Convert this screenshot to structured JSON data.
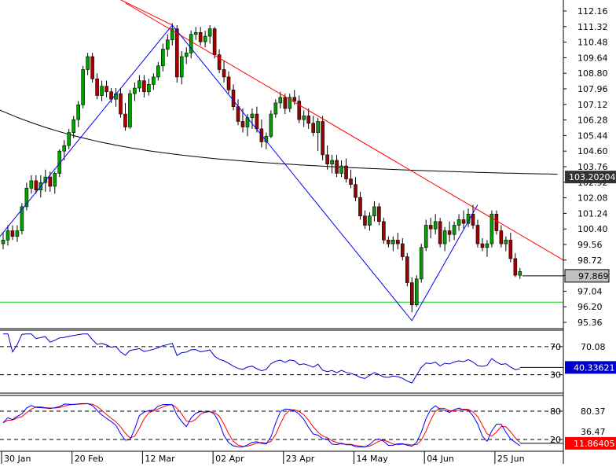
{
  "colors": {
    "background": "#ffffff",
    "up_candle": "#00a000",
    "down_candle": "#a00000",
    "wick": "#000000",
    "trendline_red": "#ff0000",
    "zigzag_blue": "#0000ff",
    "ma_line": "#000000",
    "support_green": "#00cc00",
    "rsi_line": "#0000cc",
    "stoch_k": "#0000ff",
    "stoch_d": "#ff0000",
    "price_label_bg": "#c0c0c0",
    "ma_label_bg": "#333333",
    "rsi_label_bg": "#0000cc",
    "stoch_label_bg": "#ff0000"
  },
  "chart_data": [
    {
      "type": "candlestick",
      "pane": "price",
      "y_ticks": [
        "112.16",
        "111.32",
        "110.48",
        "109.64",
        "108.80",
        "107.96",
        "107.12",
        "106.28",
        "105.44",
        "104.60",
        "103.76",
        "102.92",
        "102.08",
        "101.24",
        "100.40",
        "99.56",
        "98.72",
        "97.88",
        "97.04",
        "96.20",
        "95.36"
      ],
      "ylim": [
        95.0,
        112.5
      ],
      "current_price_label": "97.869",
      "current_price": 97.869,
      "ma_label": "103.20204",
      "ma_value": 103.20204,
      "support_level": 96.45,
      "x_tick_labels": [
        "30 Jan",
        "20 Feb",
        "12 Mar",
        "02 Apr",
        "23 Apr",
        "14 May",
        "04 Jun",
        "25 Jun"
      ],
      "candles": [
        [
          99.6,
          100.2,
          99.3,
          99.8
        ],
        [
          99.8,
          100.6,
          99.5,
          100.3
        ],
        [
          100.3,
          100.6,
          99.8,
          100.0
        ],
        [
          100.0,
          100.6,
          99.7,
          100.3
        ],
        [
          100.3,
          101.8,
          100.1,
          101.6
        ],
        [
          101.6,
          102.9,
          101.4,
          102.6
        ],
        [
          102.6,
          103.3,
          102.3,
          103.0
        ],
        [
          103.0,
          103.3,
          102.3,
          102.5
        ],
        [
          102.5,
          103.3,
          102.1,
          102.9
        ],
        [
          102.9,
          103.6,
          102.4,
          103.2
        ],
        [
          103.2,
          103.5,
          102.4,
          102.7
        ],
        [
          102.7,
          103.5,
          102.3,
          103.4
        ],
        [
          103.4,
          104.7,
          103.2,
          104.6
        ],
        [
          104.6,
          105.2,
          104.1,
          104.9
        ],
        [
          104.9,
          105.8,
          104.7,
          105.6
        ],
        [
          105.6,
          106.5,
          105.3,
          106.3
        ],
        [
          106.3,
          107.3,
          105.9,
          107.1
        ],
        [
          107.1,
          109.2,
          106.9,
          109.0
        ],
        [
          109.0,
          109.9,
          108.7,
          109.7
        ],
        [
          109.7,
          109.9,
          108.3,
          108.5
        ],
        [
          108.5,
          108.8,
          107.4,
          107.6
        ],
        [
          107.6,
          108.4,
          107.3,
          108.1
        ],
        [
          108.1,
          108.4,
          107.5,
          107.8
        ],
        [
          107.8,
          108.0,
          107.2,
          107.4
        ],
        [
          107.4,
          108.0,
          107.0,
          107.7
        ],
        [
          107.7,
          108.0,
          106.4,
          106.6
        ],
        [
          106.6,
          107.2,
          105.7,
          105.9
        ],
        [
          105.9,
          107.9,
          105.8,
          107.7
        ],
        [
          107.7,
          108.3,
          107.3,
          108.0
        ],
        [
          108.0,
          108.7,
          107.8,
          108.4
        ],
        [
          108.4,
          108.7,
          107.5,
          107.8
        ],
        [
          107.8,
          108.5,
          107.6,
          108.2
        ],
        [
          108.2,
          108.8,
          107.9,
          108.6
        ],
        [
          108.6,
          109.4,
          108.4,
          109.2
        ],
        [
          109.2,
          110.4,
          108.9,
          110.1
        ],
        [
          110.1,
          110.9,
          109.7,
          110.6
        ],
        [
          110.6,
          111.5,
          110.3,
          111.2
        ],
        [
          111.2,
          111.4,
          108.3,
          108.6
        ],
        [
          108.6,
          110.0,
          108.2,
          109.7
        ],
        [
          109.7,
          110.2,
          109.3,
          109.9
        ],
        [
          109.9,
          111.1,
          109.6,
          110.9
        ],
        [
          110.9,
          111.3,
          110.6,
          111.0
        ],
        [
          111.0,
          111.3,
          110.3,
          110.5
        ],
        [
          110.5,
          111.1,
          110.2,
          110.8
        ],
        [
          110.8,
          111.4,
          110.4,
          111.2
        ],
        [
          111.2,
          111.3,
          109.6,
          109.8
        ],
        [
          109.8,
          110.1,
          108.8,
          109.0
        ],
        [
          109.0,
          109.5,
          108.3,
          108.6
        ],
        [
          108.6,
          108.9,
          107.7,
          107.9
        ],
        [
          107.9,
          108.2,
          106.8,
          107.0
        ],
        [
          107.0,
          107.4,
          106.0,
          106.2
        ],
        [
          106.2,
          106.9,
          105.6,
          105.9
        ],
        [
          105.9,
          106.6,
          105.4,
          106.4
        ],
        [
          106.4,
          106.9,
          105.8,
          106.6
        ],
        [
          106.6,
          107.0,
          105.6,
          105.8
        ],
        [
          105.8,
          106.3,
          104.8,
          105.1
        ],
        [
          105.1,
          105.6,
          104.7,
          105.4
        ],
        [
          105.4,
          106.8,
          105.3,
          106.6
        ],
        [
          106.6,
          107.4,
          106.4,
          107.2
        ],
        [
          107.2,
          107.8,
          106.9,
          107.5
        ],
        [
          107.5,
          107.7,
          106.6,
          106.9
        ],
        [
          106.9,
          107.7,
          106.7,
          107.5
        ],
        [
          107.5,
          107.9,
          107.1,
          107.3
        ],
        [
          107.3,
          107.6,
          106.1,
          106.3
        ],
        [
          106.3,
          106.8,
          105.9,
          106.5
        ],
        [
          106.5,
          106.9,
          105.8,
          106.1
        ],
        [
          106.1,
          106.5,
          105.4,
          105.6
        ],
        [
          105.6,
          106.4,
          104.6,
          106.2
        ],
        [
          106.2,
          106.5,
          104.1,
          104.4
        ],
        [
          104.4,
          104.9,
          103.6,
          103.9
        ],
        [
          103.9,
          104.4,
          103.4,
          104.1
        ],
        [
          104.1,
          104.4,
          103.2,
          103.4
        ],
        [
          103.4,
          104.1,
          103.2,
          103.8
        ],
        [
          103.8,
          104.2,
          102.9,
          103.1
        ],
        [
          103.1,
          103.6,
          102.6,
          102.8
        ],
        [
          102.8,
          103.2,
          101.9,
          102.1
        ],
        [
          102.1,
          102.4,
          100.9,
          101.1
        ],
        [
          101.1,
          101.4,
          100.4,
          100.6
        ],
        [
          100.6,
          101.3,
          100.3,
          101.1
        ],
        [
          101.1,
          101.9,
          100.8,
          101.6
        ],
        [
          101.6,
          101.8,
          100.6,
          100.8
        ],
        [
          100.8,
          101.0,
          99.6,
          99.8
        ],
        [
          99.8,
          100.0,
          99.4,
          99.6
        ],
        [
          99.6,
          100.0,
          99.2,
          99.8
        ],
        [
          99.8,
          100.2,
          99.3,
          99.6
        ],
        [
          99.6,
          99.9,
          98.7,
          98.9
        ],
        [
          98.9,
          99.1,
          97.3,
          97.5
        ],
        [
          97.5,
          97.8,
          95.9,
          96.3
        ],
        [
          96.3,
          97.9,
          96.2,
          97.7
        ],
        [
          97.7,
          99.6,
          97.5,
          99.4
        ],
        [
          99.4,
          100.9,
          99.2,
          100.6
        ],
        [
          100.6,
          101.0,
          99.9,
          100.4
        ],
        [
          100.4,
          101.2,
          100.1,
          100.8
        ],
        [
          100.8,
          101.0,
          99.4,
          99.6
        ],
        [
          99.6,
          100.5,
          99.2,
          100.3
        ],
        [
          100.3,
          100.8,
          99.7,
          100.1
        ],
        [
          100.1,
          100.8,
          99.8,
          100.6
        ],
        [
          100.6,
          101.2,
          100.3,
          100.9
        ],
        [
          100.9,
          101.4,
          100.4,
          100.7
        ],
        [
          100.7,
          101.5,
          100.5,
          101.2
        ],
        [
          101.2,
          101.7,
          100.4,
          100.6
        ],
        [
          100.6,
          100.9,
          99.4,
          99.6
        ],
        [
          99.6,
          99.9,
          99.2,
          99.4
        ],
        [
          99.4,
          99.8,
          98.9,
          99.6
        ],
        [
          99.6,
          101.4,
          99.4,
          101.2
        ],
        [
          101.2,
          101.4,
          100.1,
          100.3
        ],
        [
          100.3,
          100.6,
          99.4,
          99.6
        ],
        [
          99.6,
          100.0,
          99.2,
          99.8
        ],
        [
          99.8,
          100.2,
          98.6,
          98.8
        ],
        [
          98.8,
          99.1,
          97.8,
          97.9
        ],
        [
          97.9,
          98.3,
          97.7,
          98.1
        ]
      ]
    },
    {
      "type": "line",
      "pane": "rsi",
      "level_labels": [
        "70",
        "30"
      ],
      "levels": [
        70,
        30
      ],
      "y_ticks": [
        "70.08"
      ],
      "value_label": "40.33621",
      "ylim": [
        15,
        90
      ]
    },
    {
      "type": "line",
      "pane": "stochastic",
      "level_labels": [
        "80",
        "20"
      ],
      "levels": [
        80,
        20
      ],
      "y_ticks": [
        "80.37",
        "36.47"
      ],
      "value_label": "11.86405",
      "ylim": [
        0,
        100
      ]
    }
  ]
}
